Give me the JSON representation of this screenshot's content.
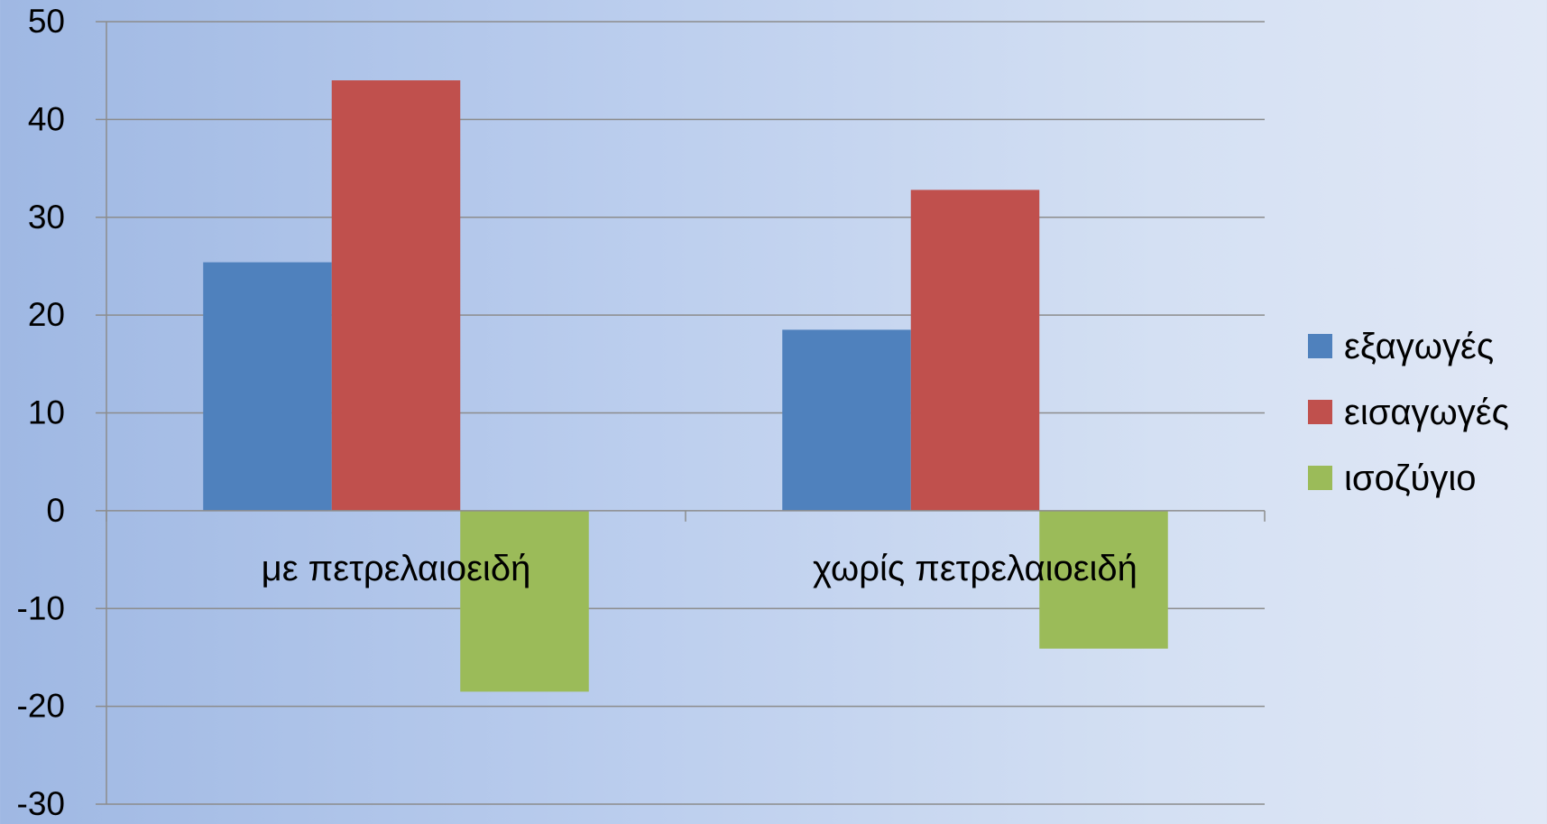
{
  "chart_data": {
    "type": "bar",
    "categories": [
      "με πετρελαιοειδή",
      "χωρίς πετρελαιοειδή"
    ],
    "series": [
      {
        "name": "εξαγωγές",
        "values": [
          25.4,
          18.5
        ],
        "color": "#4f81bd"
      },
      {
        "name": "εισαγωγές",
        "values": [
          44,
          32.8
        ],
        "color": "#c0504d"
      },
      {
        "name": "ισοζύγιο",
        "values": [
          -18.5,
          -14.1
        ],
        "color": "#9bbb59"
      }
    ],
    "ylim": [
      -30,
      50
    ],
    "yticks": [
      50,
      40,
      30,
      20,
      10,
      0,
      -10,
      -20,
      -30
    ],
    "grid": true,
    "legend_position": "right",
    "gridline_color": "#8c8c8c",
    "axis_color": "#8c8c8c"
  }
}
